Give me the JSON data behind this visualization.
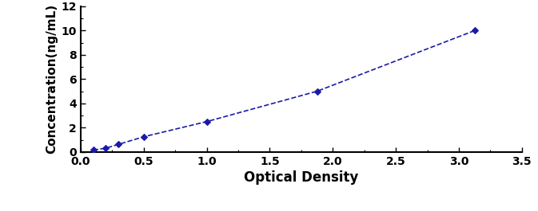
{
  "x": [
    0.1,
    0.2,
    0.3,
    0.5,
    1.0,
    1.875,
    3.125
  ],
  "y": [
    0.156,
    0.312,
    0.625,
    1.25,
    2.5,
    5.0,
    10.0
  ],
  "line_color": "#1a1aaa",
  "marker": "D",
  "marker_size": 4,
  "marker_facecolor": "#1a1aaa",
  "xlabel": "Optical Density",
  "ylabel": "Concentration(ng/mL)",
  "xlim": [
    0,
    3.5
  ],
  "ylim": [
    0,
    12
  ],
  "xticks": [
    0,
    0.5,
    1.0,
    1.5,
    2.0,
    2.5,
    3.0,
    3.5
  ],
  "yticks": [
    0,
    2,
    4,
    6,
    8,
    10,
    12
  ],
  "xlabel_fontsize": 12,
  "ylabel_fontsize": 11,
  "tick_fontsize": 10,
  "linewidth": 1.2,
  "background_color": "#ffffff"
}
